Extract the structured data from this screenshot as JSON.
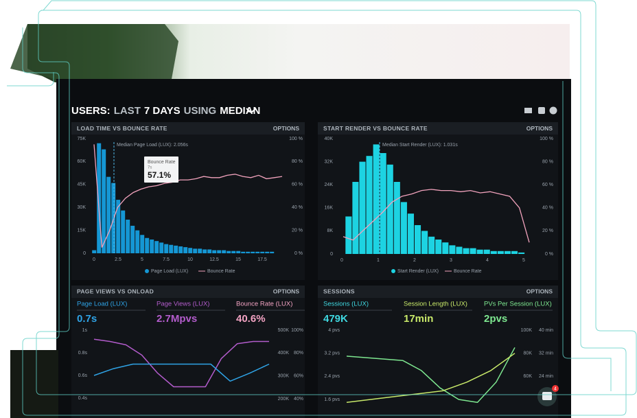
{
  "header": {
    "title_parts": [
      "USERS:",
      "LAST",
      "7 DAYS",
      "USING",
      "MEDIAN"
    ]
  },
  "panels": [
    {
      "title": "LOAD TIME VS BOUNCE RATE",
      "options": "OPTIONS",
      "annotation": "Median Page Load (LUX): 2.056s",
      "tooltip": {
        "label": "Bounce Rate",
        "sub": "7s",
        "value": "57.1%"
      },
      "ylim": [
        0,
        75
      ],
      "yticks": [
        {
          "value": 75,
          "label": "75K"
        },
        {
          "value": 60,
          "label": "60K"
        },
        {
          "value": 45,
          "label": "45K"
        },
        {
          "value": 30,
          "label": "30K"
        },
        {
          "value": 15,
          "label": "15K"
        },
        0
      ],
      "y2lim": [
        0,
        100
      ],
      "y2ticks": [
        {
          "value": 100,
          "label": "100 %"
        },
        {
          "value": 80,
          "label": "80 %"
        },
        {
          "value": 60,
          "label": "60 %"
        },
        {
          "value": 40,
          "label": "40 %"
        },
        {
          "value": 20,
          "label": "20 %"
        },
        {
          "value": 0,
          "label": "0 %"
        }
      ],
      "xlim": [
        0,
        19
      ],
      "xticks": [
        0,
        2.5,
        5,
        7.5,
        10,
        12.5,
        15,
        17.5
      ],
      "legend": [
        "Page Load (LUX)",
        "Bounce Rate"
      ],
      "bar_color": "#1597d4",
      "line_color": "#f2a3bd",
      "bars": [
        2,
        72,
        68,
        50,
        46,
        35,
        28,
        22,
        18,
        15,
        12,
        10,
        9,
        8,
        7,
        6,
        5.5,
        5,
        4.5,
        4,
        3.5,
        3,
        3,
        2.5,
        2.5,
        2,
        2,
        2,
        1.5,
        1.5,
        1.5,
        1,
        1,
        1,
        1,
        1,
        1,
        1
      ],
      "line": [
        95,
        5,
        20,
        40,
        48,
        53,
        56,
        58,
        59,
        61,
        62,
        64,
        64,
        65,
        67,
        66,
        66,
        68,
        69,
        67,
        66,
        68,
        65,
        66,
        67
      ]
    },
    {
      "title": "START RENDER VS BOUNCE RATE",
      "options": "OPTIONS",
      "annotation": "Median Start Render (LUX): 1.031s",
      "ylim": [
        0,
        40
      ],
      "yticks": [
        {
          "value": 40,
          "label": "40K"
        },
        {
          "value": 32,
          "label": "32K"
        },
        {
          "value": 24,
          "label": "24K"
        },
        {
          "value": 16,
          "label": "16K"
        },
        {
          "value": 8,
          "label": "8K"
        },
        0
      ],
      "y2lim": [
        0,
        100
      ],
      "y2ticks": [
        {
          "value": 100,
          "label": "100 %"
        },
        {
          "value": 80,
          "label": "80 %"
        },
        {
          "value": 60,
          "label": "60 %"
        },
        {
          "value": 40,
          "label": "40 %"
        },
        {
          "value": 20,
          "label": "20 %"
        },
        {
          "value": 0,
          "label": "0 %"
        }
      ],
      "xlim": [
        0,
        5
      ],
      "xticks": [
        0,
        1,
        2,
        3,
        4,
        5
      ],
      "legend": [
        "Start Render (LUX)",
        "Bounce Rate"
      ],
      "bar_color": "#1dd3e2",
      "line_color": "#f2a3bd",
      "bars": [
        13,
        25,
        32,
        34,
        38,
        35,
        31,
        25,
        18,
        14,
        10,
        8,
        6,
        5,
        4,
        3,
        2.5,
        2,
        2,
        1.5,
        1.5,
        1,
        1,
        1,
        1,
        0.5
      ],
      "line": [
        15,
        12,
        20,
        28,
        36,
        45,
        50,
        52,
        55,
        56,
        55,
        55,
        54,
        55,
        53,
        54,
        52,
        50,
        40,
        10
      ]
    }
  ],
  "lower": [
    {
      "title": "PAGE VIEWS VS ONLOAD",
      "options": "OPTIONS",
      "metrics": [
        {
          "label": "Page Load (LUX)",
          "value": "0.7s",
          "color": "#2fa3e6"
        },
        {
          "label": "Page Views (LUX)",
          "value": "2.7Mpvs",
          "color": "#b35ccc"
        },
        {
          "label": "Bounce Rate (LUX)",
          "value": "40.6%",
          "color": "#f3a3c3"
        }
      ],
      "ylim": [
        0.4,
        1
      ],
      "yticks": [
        {
          "value": 1,
          "label": "1s"
        },
        {
          "value": 0.8,
          "label": "0.8s"
        },
        {
          "value": 0.6,
          "label": "0.6s"
        },
        {
          "value": 0.4,
          "label": "0.4s"
        }
      ],
      "y2lim": [
        200,
        500
      ],
      "y2ticks": [
        {
          "value": 500,
          "label": "500K"
        },
        {
          "value": 400,
          "label": "400K"
        },
        {
          "value": 300,
          "label": "300K"
        },
        {
          "value": 200,
          "label": "200K"
        }
      ],
      "y3lim": [
        40,
        100
      ],
      "y3ticks": [
        {
          "value": 100,
          "label": "100%"
        },
        {
          "value": 80,
          "label": "80%"
        },
        {
          "value": 60,
          "label": "60%"
        },
        {
          "value": 40,
          "label": "40%"
        }
      ],
      "series": [
        {
          "color": "#b35ccc",
          "values": [
            0.92,
            0.9,
            0.87,
            0.78,
            0.62,
            0.5,
            0.5,
            0.5,
            0.75,
            0.88,
            0.9,
            0.9
          ]
        },
        {
          "color": "#2fa3e6",
          "values": [
            0.6,
            0.66,
            0.7,
            0.7,
            0.7,
            0.7,
            0.7,
            0.55,
            0.62,
            0.7
          ]
        }
      ]
    },
    {
      "title": "SESSIONS",
      "options": "OPTIONS",
      "metrics": [
        {
          "label": "Sessions (LUX)",
          "value": "479K",
          "color": "#3fd8e0"
        },
        {
          "label": "Session Length (LUX)",
          "value": "17min",
          "color": "#c9ea6a"
        },
        {
          "label": "PVs Per Session (LUX)",
          "value": "2pvs",
          "color": "#7ee890"
        }
      ],
      "ylim": [
        1.6,
        4
      ],
      "yticks": [
        {
          "value": 4,
          "label": "4 pvs"
        },
        {
          "value": 3.2,
          "label": "3.2 pvs"
        },
        {
          "value": 2.4,
          "label": "2.4 pvs"
        },
        {
          "value": 1.6,
          "label": "1.6 pvs"
        }
      ],
      "y2lim": [
        60,
        100
      ],
      "y2ticks": [
        {
          "value": 100,
          "label": "100K"
        },
        {
          "value": 80,
          "label": "80K"
        },
        {
          "value": 60,
          "label": "60K"
        }
      ],
      "y3lim": [
        24,
        40
      ],
      "y3ticks": [
        {
          "value": 40,
          "label": "40 min"
        },
        {
          "value": 32,
          "label": "32 min"
        },
        {
          "value": 24,
          "label": "24 min"
        }
      ],
      "series": [
        {
          "color": "#7ee890",
          "values": [
            3.1,
            3.05,
            3.0,
            2.95,
            2.6,
            2.0,
            1.6,
            1.5,
            2.2,
            3.4
          ]
        },
        {
          "color": "#c9ea6a",
          "values": [
            1.5,
            1.6,
            1.7,
            1.8,
            1.9,
            2.2,
            2.6,
            3.2
          ]
        }
      ]
    }
  ],
  "badge": "4"
}
